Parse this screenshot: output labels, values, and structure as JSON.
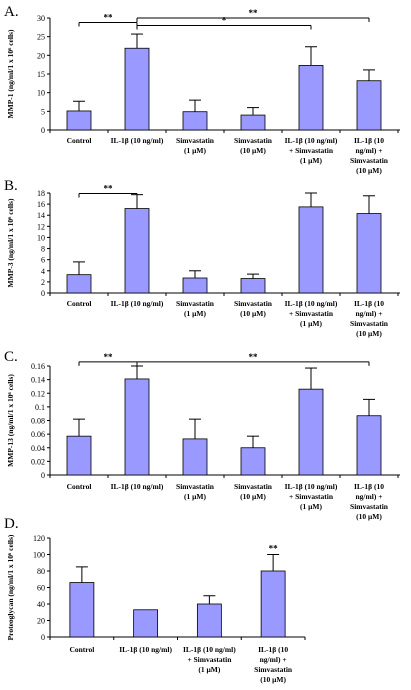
{
  "chart_data": [
    {
      "type": "bar",
      "panel_label": "A.",
      "ylabel": "MMP-1 (ng/ml/1 x 10⁶ cells)",
      "ylim": [
        0,
        30
      ],
      "yticks": [
        0,
        5,
        10,
        15,
        20,
        25,
        30
      ],
      "categories": [
        [
          "Control"
        ],
        [
          "IL-1β (10 ng/ml)"
        ],
        [
          "Simvastatin",
          "(1 μM)"
        ],
        [
          "Simvastatin",
          "(10 μM)"
        ],
        [
          "IL-1β (10 ng/ml)",
          "+ Simvastatin",
          "(1 μM)"
        ],
        [
          "IL-1β (10",
          "ng/ml) +",
          "Simvastatin",
          "(10 μM)"
        ]
      ],
      "values": [
        5.1,
        21.9,
        4.9,
        4.0,
        17.3,
        13.2
      ],
      "errors": [
        2.6,
        3.8,
        3.1,
        2.0,
        5.0,
        2.9
      ],
      "significance": [
        {
          "from": 0,
          "to": 1,
          "label": "**",
          "y": 28.8
        },
        {
          "from": 1,
          "to": 4,
          "label": "*",
          "y": 28.0
        },
        {
          "from": 1,
          "to": 5,
          "label": "**",
          "y": 30.0
        }
      ],
      "bar_color": "#9999ff"
    },
    {
      "type": "bar",
      "panel_label": "B.",
      "ylabel": "MMP-3 (ng/ml/1 x 10⁶ cells)",
      "ylim": [
        0,
        18
      ],
      "yticks": [
        0,
        2,
        4,
        6,
        8,
        10,
        12,
        14,
        16,
        18
      ],
      "categories": [
        [
          "Control"
        ],
        [
          "IL-1β (10 ng/ml)"
        ],
        [
          "Simvastatin",
          "(1 μM)"
        ],
        [
          "Simvastatin",
          "(10 μM)"
        ],
        [
          "IL-1β (10 ng/ml)",
          "+ Simvastatin",
          "(1 μM)"
        ],
        [
          "IL-1β (10",
          "ng/ml) +",
          "Simvastatin",
          "(10 μM)"
        ]
      ],
      "values": [
        3.3,
        15.2,
        2.7,
        2.6,
        15.5,
        14.3
      ],
      "errors": [
        2.3,
        2.5,
        1.3,
        0.8,
        2.5,
        3.2
      ],
      "significance": [
        {
          "from": 0,
          "to": 1,
          "label": "**",
          "y": 17.9
        }
      ],
      "bar_color": "#9999ff"
    },
    {
      "type": "bar",
      "panel_label": "C.",
      "ylabel": "MMP-13 (ng/ml/1 x 10⁶ cells)",
      "ylim": [
        0,
        0.16
      ],
      "yticks": [
        0,
        0.02,
        0.04,
        0.06,
        0.08,
        0.1,
        0.12,
        0.14,
        0.16
      ],
      "ytick_labels": [
        "0",
        "0.02",
        "0.04",
        "0.06",
        "0.08",
        "0.1",
        "0.12",
        "0.14",
        "0.16"
      ],
      "categories": [
        [
          "Control"
        ],
        [
          "IL-1β (10 ng/ml)"
        ],
        [
          "Simvastatin",
          "(1 μM)"
        ],
        [
          "Simvastatin",
          "(10 μM)"
        ],
        [
          "IL-1β (10 ng/ml)",
          "+ Simvastatin",
          "(1 μM)"
        ],
        [
          "IL-1β (10",
          "ng/ml) +",
          "Simvastatin",
          "(10 μM)"
        ]
      ],
      "values": [
        0.057,
        0.141,
        0.053,
        0.04,
        0.126,
        0.087
      ],
      "errors": [
        0.025,
        0.019,
        0.029,
        0.017,
        0.031,
        0.024
      ],
      "significance": [
        {
          "from": 0,
          "to": 1,
          "label": "**",
          "y": 0.166
        },
        {
          "from": 1,
          "to": 5,
          "label": "**",
          "y": 0.166
        }
      ],
      "bar_color": "#9999ff"
    },
    {
      "type": "bar",
      "panel_label": "D.",
      "ylabel": "Proteoglycan (ng/ml/1 x 10⁶ cells)",
      "ylim": [
        0,
        120
      ],
      "yticks": [
        0,
        20,
        40,
        60,
        80,
        100,
        120
      ],
      "categories": [
        [
          "Control"
        ],
        [
          "IL-1β (10 ng/ml)"
        ],
        [
          "IL-1β (10 ng/ml)",
          "+ Simvastatin",
          "(1 μM)"
        ],
        [
          "IL-1β (10",
          "ng/ml) +",
          "Simvastatin",
          "(10 μM)"
        ]
      ],
      "values": [
        66,
        33,
        40,
        80
      ],
      "errors": [
        19,
        0,
        10,
        20
      ],
      "annotations": [
        {
          "index": 3,
          "label": "**"
        }
      ],
      "bar_color": "#9999ff"
    }
  ]
}
